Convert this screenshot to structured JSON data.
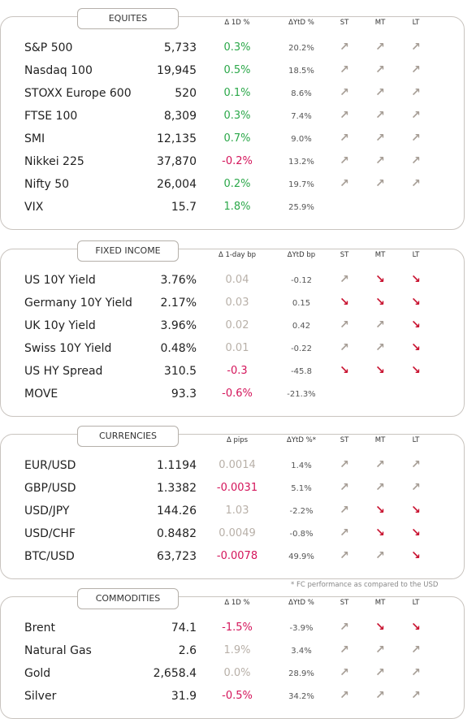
{
  "arrow_colors": {
    "↗": "#a69d95",
    "↘": "#c8102e"
  },
  "footnote": "* FC performance as compared to the USD",
  "sections": [
    {
      "title": "EQUITES",
      "headers": [
        "Δ 1D %",
        "ΔYtD %",
        "ST",
        "MT",
        "LT"
      ],
      "rows": [
        {
          "name": "S&P 500",
          "value": "5,733",
          "change": "0.3%",
          "change_color": "#2ca84a",
          "ytd": "20.2%",
          "arrows": [
            "↗",
            "↗",
            "↗"
          ]
        },
        {
          "name": "Nasdaq 100",
          "value": "19,945",
          "change": "0.5%",
          "change_color": "#2ca84a",
          "ytd": "18.5%",
          "arrows": [
            "↗",
            "↗",
            "↗"
          ]
        },
        {
          "name": "STOXX Europe 600",
          "value": "520",
          "change": "0.1%",
          "change_color": "#2ca84a",
          "ytd": "8.6%",
          "arrows": [
            "↗",
            "↗",
            "↗"
          ]
        },
        {
          "name": "FTSE 100",
          "value": "8,309",
          "change": "0.3%",
          "change_color": "#2ca84a",
          "ytd": "7.4%",
          "arrows": [
            "↗",
            "↗",
            "↗"
          ]
        },
        {
          "name": "SMI",
          "value": "12,135",
          "change": "0.7%",
          "change_color": "#2ca84a",
          "ytd": "9.0%",
          "arrows": [
            "↗",
            "↗",
            "↗"
          ]
        },
        {
          "name": "Nikkei 225",
          "value": "37,870",
          "change": "-0.2%",
          "change_color": "#d4145a",
          "ytd": "13.2%",
          "arrows": [
            "↗",
            "↗",
            "↗"
          ]
        },
        {
          "name": "Nifty  50",
          "value": "26,004",
          "change": "0.2%",
          "change_color": "#2ca84a",
          "ytd": "19.7%",
          "arrows": [
            "↗",
            "↗",
            "↗"
          ]
        },
        {
          "name": "VIX",
          "value": "15.7",
          "change": "1.8%",
          "change_color": "#2ca84a",
          "ytd": "25.9%",
          "arrows": []
        }
      ]
    },
    {
      "title": "FIXED INCOME",
      "headers": [
        "Δ 1-day bp",
        "ΔYtD bp",
        "ST",
        "MT",
        "LT"
      ],
      "rows": [
        {
          "name": "US 10Y Yield",
          "value": "3.76%",
          "change": "0.04",
          "change_color": "#b8b0a8",
          "ytd": "-0.12",
          "arrows": [
            "↗",
            "↘",
            "↘"
          ]
        },
        {
          "name": "Germany 10Y Yield",
          "value": "2.17%",
          "change": "0.03",
          "change_color": "#b8b0a8",
          "ytd": "0.15",
          "arrows": [
            "↘",
            "↘",
            "↘"
          ]
        },
        {
          "name": "UK 10y Yield",
          "value": "3.96%",
          "change": "0.02",
          "change_color": "#b8b0a8",
          "ytd": "0.42",
          "arrows": [
            "↗",
            "↗",
            "↘"
          ]
        },
        {
          "name": "Swiss 10Y Yield",
          "value": "0.48%",
          "change": "0.01",
          "change_color": "#b8b0a8",
          "ytd": "-0.22",
          "arrows": [
            "↗",
            "↗",
            "↘"
          ]
        },
        {
          "name": "US HY Spread",
          "value": "310.5",
          "change": "-0.3",
          "change_color": "#d4145a",
          "ytd": "-45.8",
          "arrows": [
            "↘",
            "↘",
            "↘"
          ]
        },
        {
          "name": "MOVE",
          "value": "93.3",
          "change": "-0.6%",
          "change_color": "#d4145a",
          "ytd": "-21.3%",
          "arrows": []
        }
      ]
    },
    {
      "title": "CURRENCIES",
      "headers": [
        "Δ pips",
        "ΔYtD %*",
        "ST",
        "MT",
        "LT"
      ],
      "rows": [
        {
          "name": "EUR/USD",
          "value": "1.1194",
          "change": "0.0014",
          "change_color": "#b8b0a8",
          "ytd": "1.4%",
          "arrows": [
            "↗",
            "↗",
            "↗"
          ]
        },
        {
          "name": "GBP/USD",
          "value": "1.3382",
          "change": "-0.0031",
          "change_color": "#d4145a",
          "ytd": "5.1%",
          "arrows": [
            "↗",
            "↗",
            "↗"
          ]
        },
        {
          "name": "USD/JPY",
          "value": "144.26",
          "change": "1.03",
          "change_color": "#b8b0a8",
          "ytd": "-2.2%",
          "arrows": [
            "↗",
            "↘",
            "↘"
          ]
        },
        {
          "name": "USD/CHF",
          "value": "0.8482",
          "change": "0.0049",
          "change_color": "#b8b0a8",
          "ytd": "-0.8%",
          "arrows": [
            "↗",
            "↘",
            "↘"
          ]
        },
        {
          "name": "BTC/USD",
          "value": "63,723",
          "change": "-0.0078",
          "change_color": "#d4145a",
          "ytd": "49.9%",
          "arrows": [
            "↗",
            "↗",
            "↘"
          ]
        }
      ]
    },
    {
      "title": "COMMODITIES",
      "headers": [
        "Δ 1D %",
        "ΔYtD %",
        "ST",
        "MT",
        "LT"
      ],
      "rows": [
        {
          "name": "Brent",
          "value": "74.1",
          "change": "-1.5%",
          "change_color": "#d4145a",
          "ytd": "-3.9%",
          "arrows": [
            "↗",
            "↘",
            "↘"
          ]
        },
        {
          "name": "Natural Gas",
          "value": "2.6",
          "change": "1.9%",
          "change_color": "#b8b0a8",
          "ytd": "3.4%",
          "arrows": [
            "↗",
            "↗",
            "↗"
          ]
        },
        {
          "name": "Gold",
          "value": "2,658.4",
          "change": "0.0%",
          "change_color": "#b8b0a8",
          "ytd": "28.9%",
          "arrows": [
            "↗",
            "↗",
            "↗"
          ]
        },
        {
          "name": "Silver",
          "value": "31.9",
          "change": "-0.5%",
          "change_color": "#d4145a",
          "ytd": "34.2%",
          "arrows": [
            "↗",
            "↗",
            "↗"
          ]
        }
      ]
    }
  ]
}
